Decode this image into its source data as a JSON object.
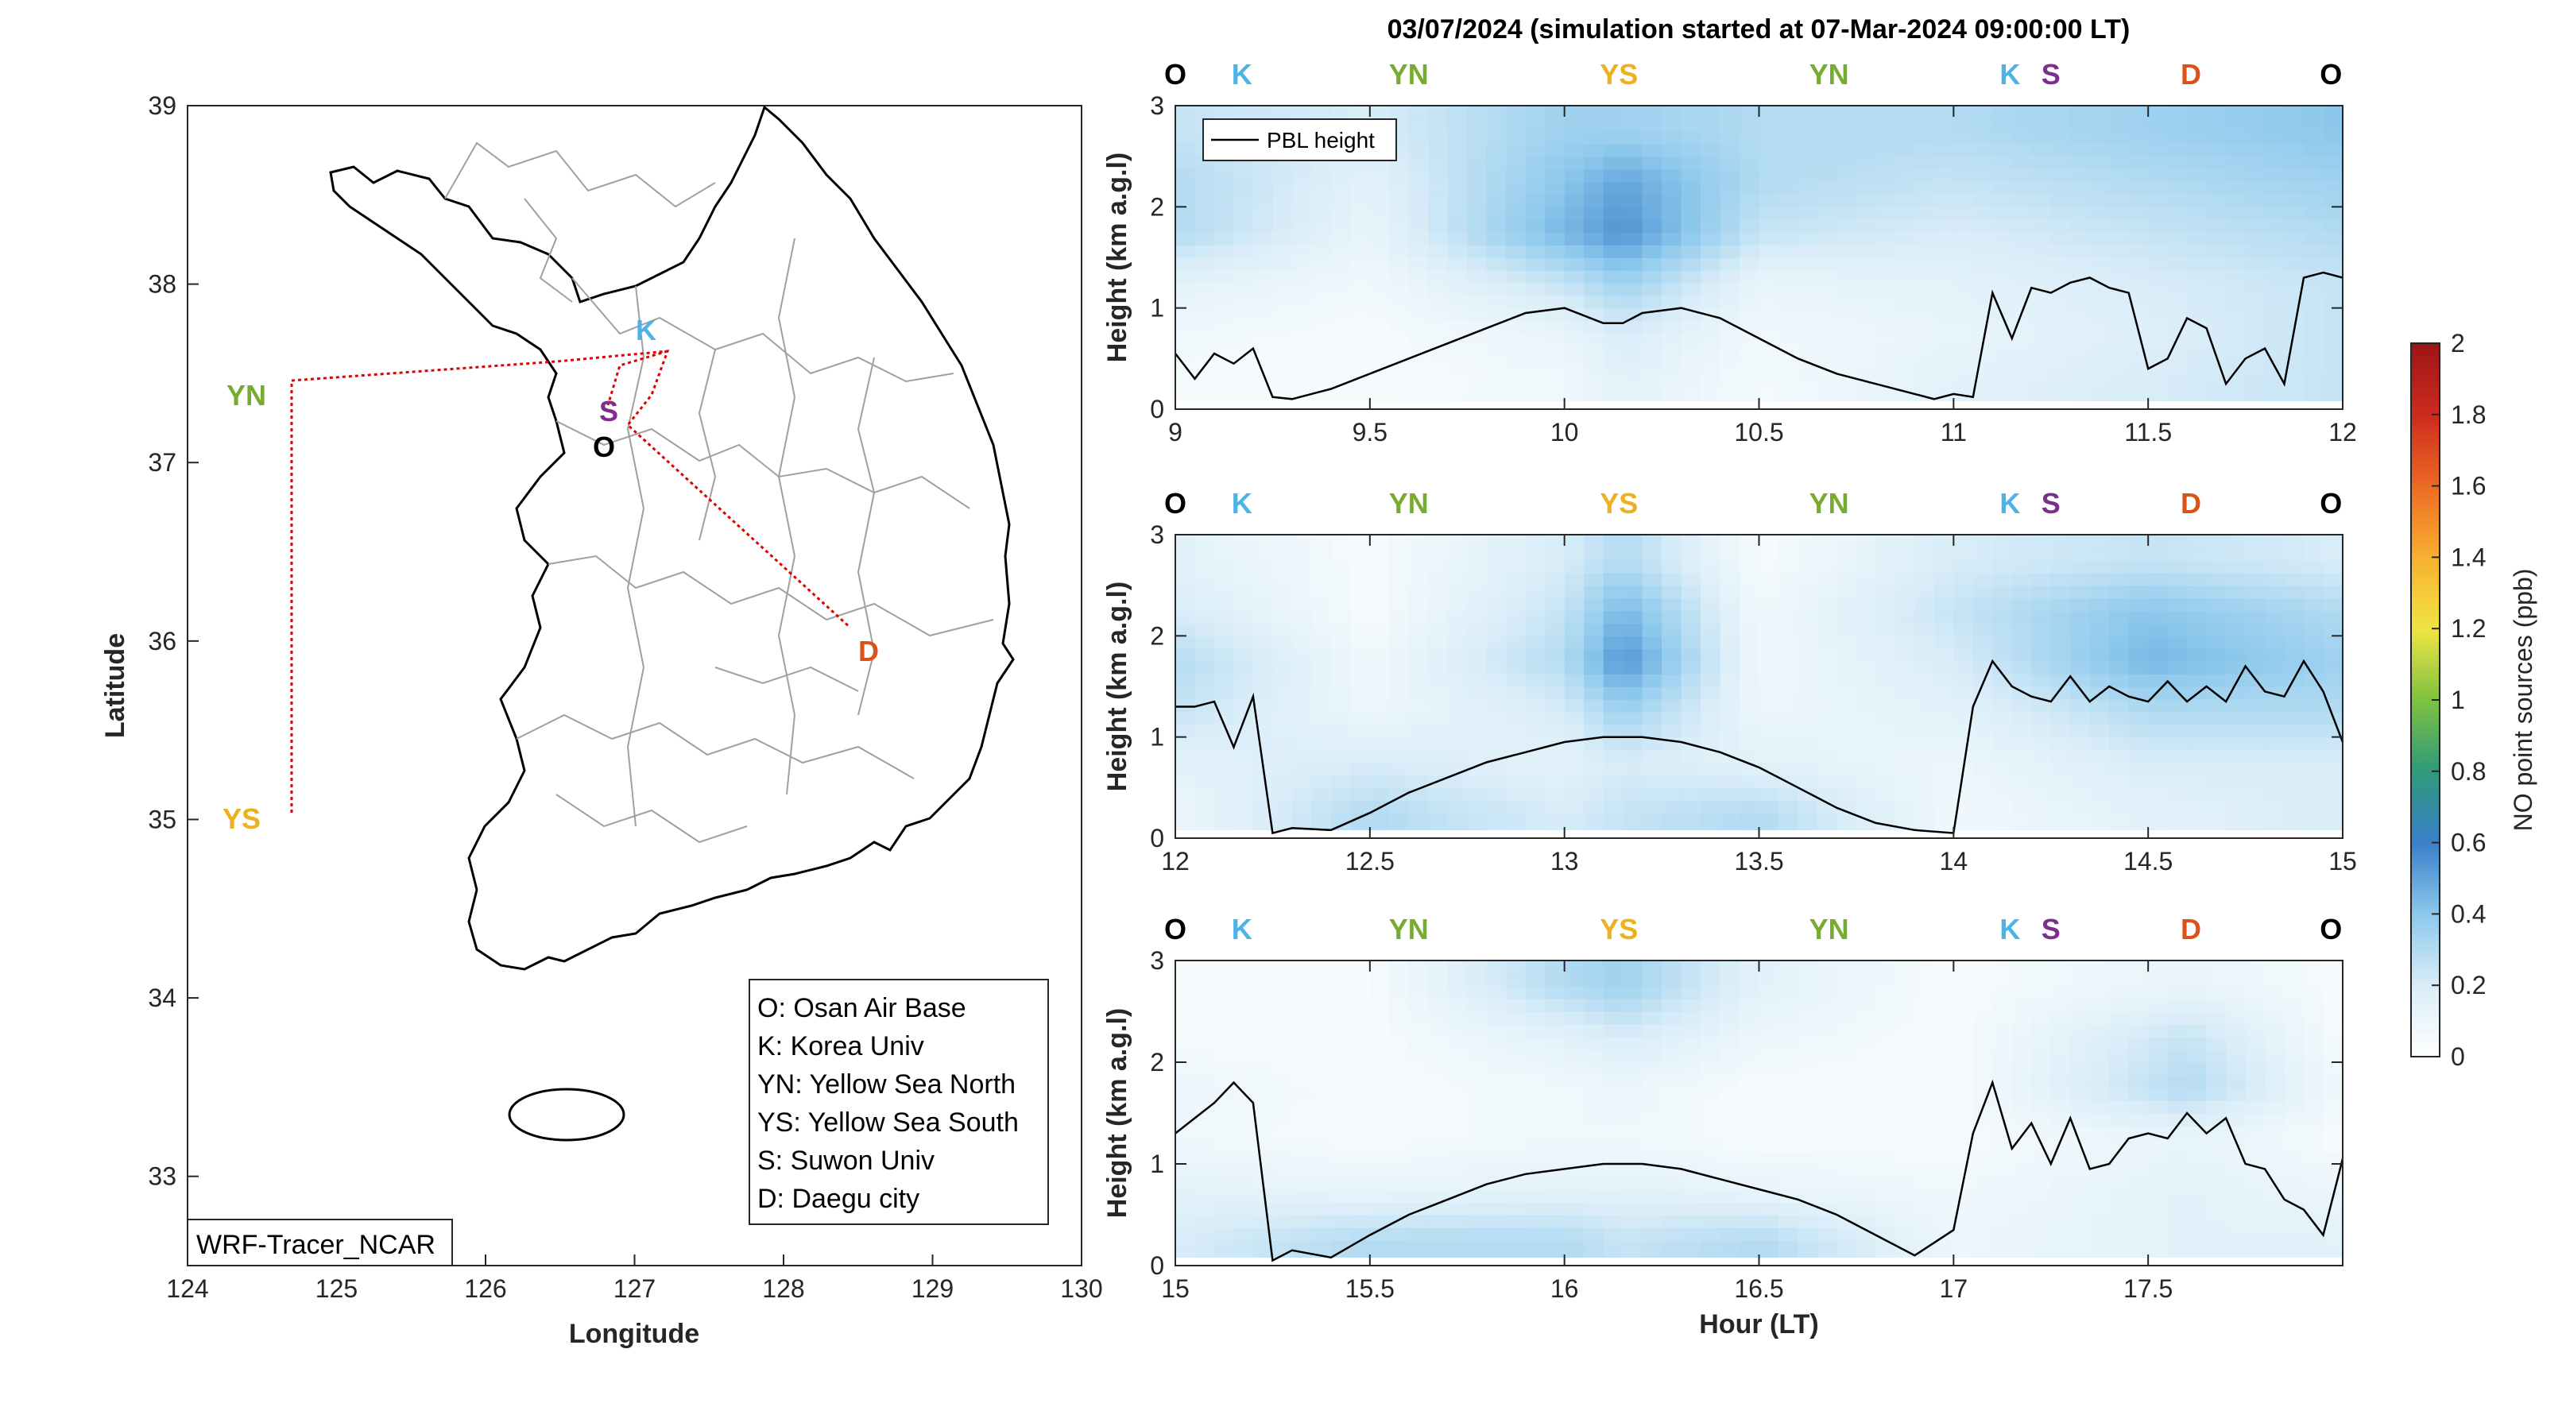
{
  "title": "03/07/2024 (simulation started at 07-Mar-2024 09:00:00 LT)",
  "colors": {
    "O": "#000000",
    "K": "#4db3e6",
    "S": "#7e2f8e",
    "YN": "#77ac30",
    "YS": "#edb120",
    "D": "#d95319",
    "route": "#e00000",
    "pbl": "#000000"
  },
  "map": {
    "xlabel": "Longitude",
    "ylabel": "Latitude",
    "xlim": [
      124,
      130
    ],
    "ylim": [
      32.5,
      39
    ],
    "xticks": [
      "124",
      "125",
      "126",
      "127",
      "128",
      "129",
      "130"
    ],
    "yticks": [
      "33",
      "34",
      "35",
      "36",
      "37",
      "38",
      "39"
    ],
    "model_label": "WRF-Tracer_NCAR",
    "sites": [
      {
        "code": "YN",
        "lon": 124.7,
        "lat": 37.45
      },
      {
        "code": "YS",
        "lon": 124.7,
        "lat": 35.05
      },
      {
        "code": "K",
        "lon": 127.2,
        "lat": 37.62
      },
      {
        "code": "S",
        "lon": 127.0,
        "lat": 37.28
      },
      {
        "code": "O",
        "lon": 127.05,
        "lat": 37.1
      },
      {
        "code": "D",
        "lon": 128.6,
        "lat": 35.87
      }
    ],
    "legend": [
      "O: Osan Air Base",
      "K: Korea Univ",
      "YN: Yellow Sea North",
      "YS: Yellow Sea South",
      "S: Suwon Univ",
      "D: Daegu city"
    ]
  },
  "chart_data": [
    {
      "type": "heatmap",
      "xlabel": "",
      "ylabel": "Height (km a.g.l)",
      "xlim": [
        9,
        12
      ],
      "ylim": [
        0,
        3
      ],
      "xticks": [
        "9",
        "9.5",
        "10",
        "10.5",
        "11",
        "11.5",
        "12"
      ],
      "yticks": [
        "0",
        "1",
        "2",
        "3"
      ],
      "legend_entry": "PBL height",
      "site_markers": [
        "O",
        "K",
        "YN",
        "YS",
        "YN",
        "K",
        "S",
        "D",
        "O"
      ],
      "pbl_height": {
        "x": [
          9.0,
          9.05,
          9.1,
          9.15,
          9.2,
          9.25,
          9.3,
          9.4,
          9.5,
          9.6,
          9.7,
          9.8,
          9.9,
          10.0,
          10.1,
          10.15,
          10.2,
          10.3,
          10.4,
          10.5,
          10.6,
          10.7,
          10.8,
          10.9,
          10.95,
          11.0,
          11.05,
          11.1,
          11.15,
          11.2,
          11.25,
          11.3,
          11.35,
          11.4,
          11.45,
          11.5,
          11.55,
          11.6,
          11.65,
          11.7,
          11.75,
          11.8,
          11.85,
          11.9,
          11.95,
          12.0
        ],
        "y": [
          0.55,
          0.3,
          0.55,
          0.45,
          0.6,
          0.12,
          0.1,
          0.2,
          0.35,
          0.5,
          0.65,
          0.8,
          0.95,
          1.0,
          0.85,
          0.85,
          0.95,
          1.0,
          0.9,
          0.7,
          0.5,
          0.35,
          0.25,
          0.15,
          0.1,
          0.15,
          0.12,
          1.15,
          0.7,
          1.2,
          1.15,
          1.25,
          1.3,
          1.2,
          1.15,
          0.4,
          0.5,
          0.9,
          0.8,
          0.25,
          0.5,
          0.6,
          0.25,
          1.3,
          1.35,
          1.3
        ]
      },
      "no_concentration_ppb": {
        "x": [
          9.0,
          9.5,
          10.0,
          10.15,
          10.5,
          11.0,
          11.5,
          12.0
        ],
        "y": [
          0.25,
          0.75,
          1.25,
          1.75,
          2.25,
          2.75
        ],
        "z": [
          [
            0.05,
            0.05,
            0.08,
            0.15,
            0.06,
            0.15,
            0.2,
            0.25
          ],
          [
            0.08,
            0.05,
            0.12,
            0.2,
            0.08,
            0.12,
            0.18,
            0.25
          ],
          [
            0.15,
            0.08,
            0.25,
            0.35,
            0.12,
            0.15,
            0.2,
            0.25
          ],
          [
            0.3,
            0.12,
            0.45,
            0.55,
            0.25,
            0.2,
            0.25,
            0.3
          ],
          [
            0.3,
            0.15,
            0.4,
            0.5,
            0.3,
            0.25,
            0.3,
            0.35
          ],
          [
            0.25,
            0.2,
            0.35,
            0.35,
            0.3,
            0.3,
            0.35,
            0.4
          ]
        ]
      }
    },
    {
      "type": "heatmap",
      "xlabel": "",
      "ylabel": "Height (km a.g.l)",
      "xlim": [
        12,
        15
      ],
      "ylim": [
        0,
        3
      ],
      "xticks": [
        "12",
        "12.5",
        "13",
        "13.5",
        "14",
        "14.5",
        "15"
      ],
      "yticks": [
        "0",
        "1",
        "2",
        "3"
      ],
      "site_markers": [
        "O",
        "K",
        "YN",
        "YS",
        "YN",
        "K",
        "S",
        "D",
        "O"
      ],
      "pbl_height": {
        "x": [
          12.0,
          12.05,
          12.1,
          12.15,
          12.2,
          12.25,
          12.3,
          12.4,
          12.5,
          12.6,
          12.7,
          12.8,
          12.9,
          13.0,
          13.1,
          13.2,
          13.3,
          13.4,
          13.5,
          13.6,
          13.7,
          13.8,
          13.9,
          14.0,
          14.05,
          14.1,
          14.15,
          14.2,
          14.25,
          14.3,
          14.35,
          14.4,
          14.45,
          14.5,
          14.55,
          14.6,
          14.65,
          14.7,
          14.75,
          14.8,
          14.85,
          14.9,
          14.95,
          15.0
        ],
        "y": [
          1.3,
          1.3,
          1.35,
          0.9,
          1.4,
          0.05,
          0.1,
          0.08,
          0.25,
          0.45,
          0.6,
          0.75,
          0.85,
          0.95,
          1.0,
          1.0,
          0.95,
          0.85,
          0.7,
          0.5,
          0.3,
          0.15,
          0.08,
          0.05,
          1.3,
          1.75,
          1.5,
          1.4,
          1.35,
          1.6,
          1.35,
          1.5,
          1.4,
          1.35,
          1.55,
          1.35,
          1.5,
          1.35,
          1.7,
          1.45,
          1.4,
          1.75,
          1.45,
          0.95
        ]
      },
      "no_concentration_ppb": {
        "x": [
          12.0,
          12.5,
          13.0,
          13.15,
          13.5,
          14.0,
          14.5,
          15.0
        ],
        "y": [
          0.25,
          0.75,
          1.25,
          1.75,
          2.25,
          2.75
        ],
        "z": [
          [
            0.1,
            0.3,
            0.2,
            0.25,
            0.3,
            0.08,
            0.15,
            0.2
          ],
          [
            0.15,
            0.2,
            0.15,
            0.2,
            0.15,
            0.1,
            0.2,
            0.2
          ],
          [
            0.25,
            0.1,
            0.2,
            0.35,
            0.1,
            0.15,
            0.3,
            0.3
          ],
          [
            0.3,
            0.08,
            0.3,
            0.55,
            0.08,
            0.2,
            0.45,
            0.35
          ],
          [
            0.2,
            0.05,
            0.25,
            0.45,
            0.08,
            0.25,
            0.4,
            0.3
          ],
          [
            0.15,
            0.05,
            0.2,
            0.3,
            0.05,
            0.2,
            0.25,
            0.2
          ]
        ]
      }
    },
    {
      "type": "heatmap",
      "xlabel": "Hour (LT)",
      "ylabel": "Height (km a.g.l)",
      "xlim": [
        15,
        18
      ],
      "ylim": [
        0,
        3
      ],
      "xticks": [
        "15",
        "15.5",
        "16",
        "16.5",
        "17",
        "17.5"
      ],
      "yticks": [
        "0",
        "1",
        "2",
        "3"
      ],
      "site_markers": [
        "O",
        "K",
        "YN",
        "YS",
        "YN",
        "K",
        "S",
        "D",
        "O"
      ],
      "pbl_height": {
        "x": [
          15.0,
          15.05,
          15.1,
          15.15,
          15.2,
          15.25,
          15.3,
          15.4,
          15.5,
          15.6,
          15.7,
          15.8,
          15.9,
          16.0,
          16.1,
          16.2,
          16.3,
          16.4,
          16.5,
          16.6,
          16.7,
          16.8,
          16.9,
          17.0,
          17.05,
          17.1,
          17.15,
          17.2,
          17.25,
          17.3,
          17.35,
          17.4,
          17.45,
          17.5,
          17.55,
          17.6,
          17.65,
          17.7,
          17.75,
          17.8,
          17.85,
          17.9,
          17.95,
          18.0
        ],
        "y": [
          1.3,
          1.45,
          1.6,
          1.8,
          1.6,
          0.05,
          0.15,
          0.08,
          0.3,
          0.5,
          0.65,
          0.8,
          0.9,
          0.95,
          1.0,
          1.0,
          0.95,
          0.85,
          0.75,
          0.65,
          0.5,
          0.3,
          0.1,
          0.35,
          1.3,
          1.8,
          1.15,
          1.4,
          1.0,
          1.45,
          0.95,
          1.0,
          1.25,
          1.3,
          1.25,
          1.5,
          1.3,
          1.45,
          1.0,
          0.95,
          0.65,
          0.55,
          0.3,
          1.05
        ]
      },
      "no_concentration_ppb": {
        "x": [
          15.0,
          15.5,
          16.0,
          16.15,
          16.5,
          17.0,
          17.6,
          18.0
        ],
        "y": [
          0.25,
          0.75,
          1.25,
          1.75,
          2.25,
          2.75
        ],
        "z": [
          [
            0.2,
            0.3,
            0.3,
            0.25,
            0.3,
            0.1,
            0.15,
            0.15
          ],
          [
            0.15,
            0.12,
            0.15,
            0.15,
            0.12,
            0.08,
            0.15,
            0.1
          ],
          [
            0.08,
            0.05,
            0.08,
            0.08,
            0.05,
            0.05,
            0.12,
            0.05
          ],
          [
            0.1,
            0.05,
            0.08,
            0.1,
            0.05,
            0.05,
            0.3,
            0.08
          ],
          [
            0.05,
            0.05,
            0.15,
            0.2,
            0.1,
            0.05,
            0.25,
            0.05
          ],
          [
            0.05,
            0.05,
            0.3,
            0.35,
            0.15,
            0.05,
            0.12,
            0.05
          ]
        ]
      }
    }
  ],
  "colorbar": {
    "label": "NO point sources (ppb)",
    "lim": [
      0,
      2
    ],
    "ticks": [
      "0",
      "0.2",
      "0.4",
      "0.6",
      "0.8",
      "1",
      "1.2",
      "1.4",
      "1.6",
      "1.8",
      "2"
    ]
  }
}
